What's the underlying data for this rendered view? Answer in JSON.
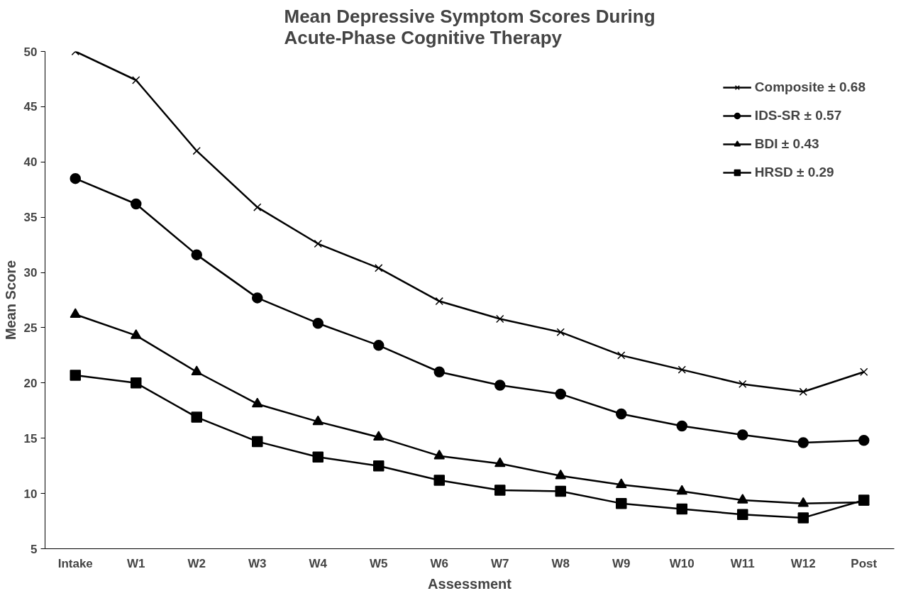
{
  "chart_data": {
    "type": "line",
    "title": "Mean Depressive Symptom Scores During\nAcute-Phase Cognitive Therapy",
    "xlabel": "Assessment",
    "ylabel": "Mean Score",
    "categories": [
      "Intake",
      "W1",
      "W2",
      "W3",
      "W4",
      "W5",
      "W6",
      "W7",
      "W8",
      "W9",
      "W10",
      "W11",
      "W12",
      "Post"
    ],
    "series": [
      {
        "name": "Composite ± 0.68",
        "color": "#000000",
        "marker": "cross",
        "values": [
          50.0,
          47.4,
          41.0,
          35.9,
          32.6,
          30.4,
          27.4,
          25.8,
          24.6,
          22.5,
          21.2,
          19.9,
          19.2,
          21.0
        ]
      },
      {
        "name": "IDS-SR ± 0.57",
        "color": "#000000",
        "marker": "circle",
        "values": [
          38.5,
          36.2,
          31.6,
          27.7,
          25.4,
          23.4,
          21.0,
          19.8,
          19.0,
          17.2,
          16.1,
          15.3,
          14.6,
          14.8
        ]
      },
      {
        "name": "BDI ± 0.43",
        "color": "#000000",
        "marker": "triangle",
        "values": [
          26.2,
          24.3,
          21.0,
          18.1,
          16.5,
          15.1,
          13.4,
          12.7,
          11.6,
          10.8,
          10.2,
          9.4,
          9.1,
          9.2
        ]
      },
      {
        "name": "HRSD ± 0.29",
        "color": "#000000",
        "marker": "square",
        "values": [
          20.7,
          20.0,
          16.9,
          14.7,
          13.3,
          12.5,
          11.2,
          10.3,
          10.2,
          9.1,
          8.6,
          8.1,
          7.8,
          9.4
        ]
      }
    ],
    "ylim": [
      5,
      50
    ],
    "yticks": [
      5,
      10,
      15,
      20,
      25,
      30,
      35,
      40,
      45,
      50
    ],
    "grid": false,
    "legend": "top right",
    "line_style": "solid"
  }
}
